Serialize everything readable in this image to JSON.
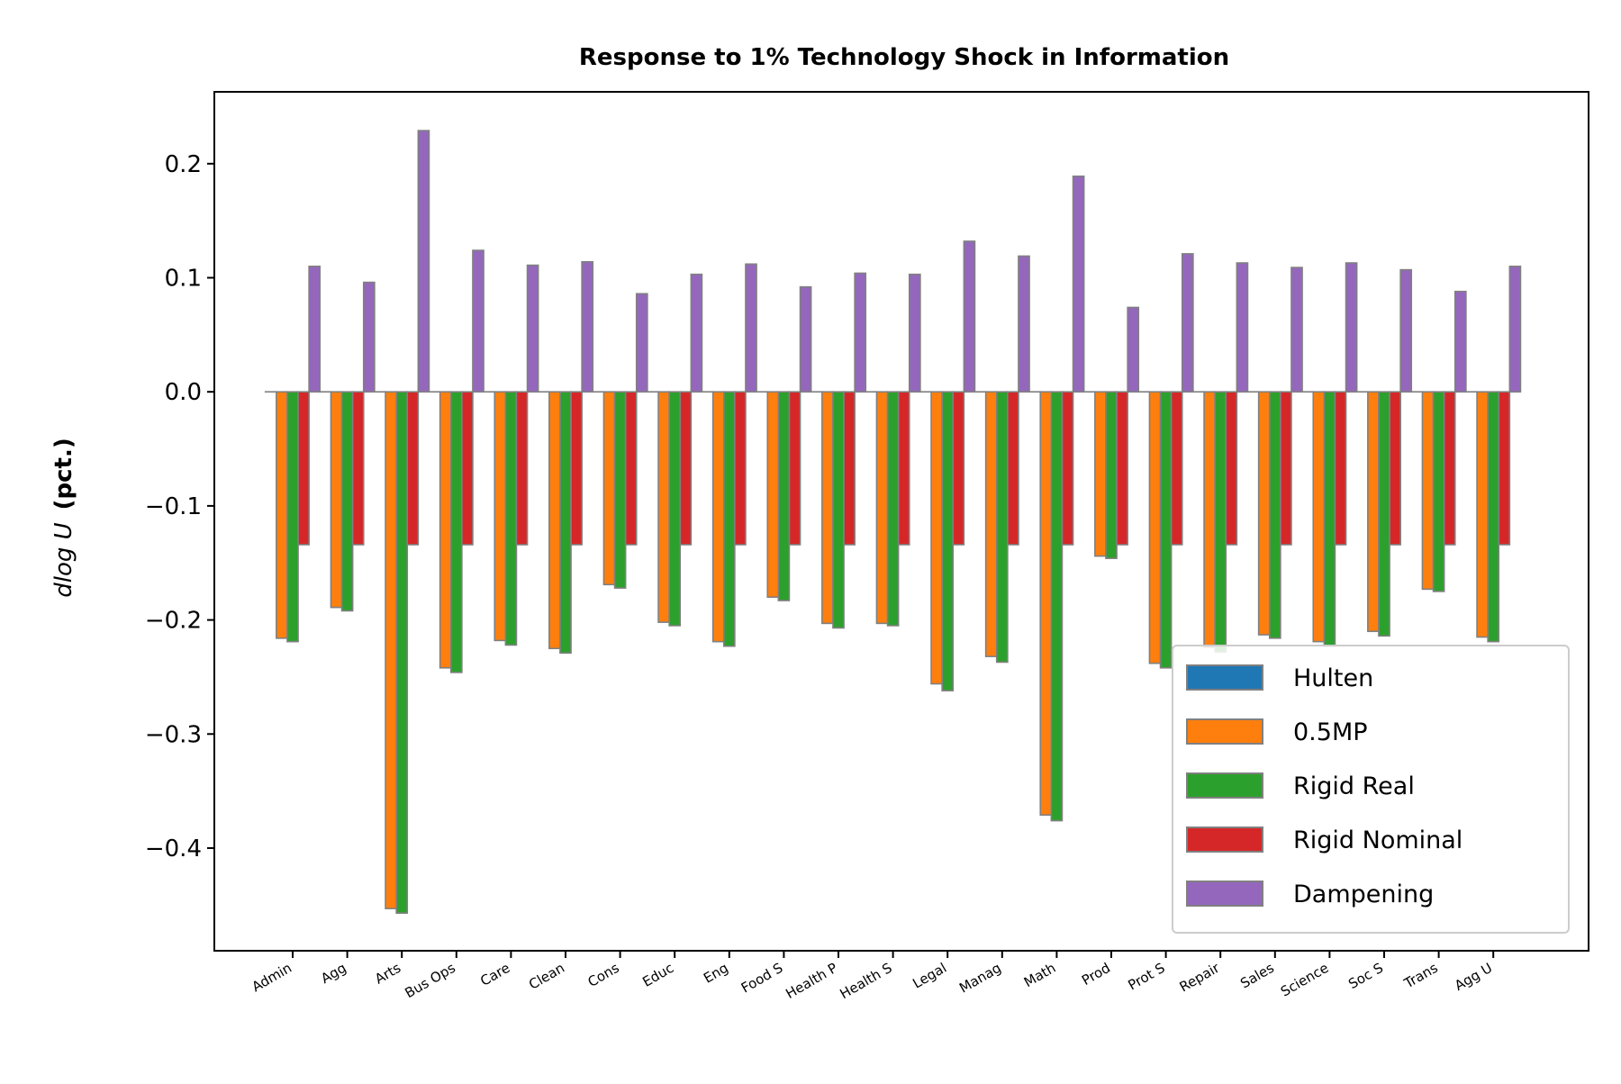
{
  "chart_data": {
    "type": "bar",
    "title": "Response to 1% Technology Shock in Information",
    "xlabel": "",
    "ylabel_math": "dlog U",
    "ylabel_unit": "(pct.)",
    "ylim": [
      -0.49,
      0.263
    ],
    "yticks": [
      0.2,
      0.1,
      0.0,
      -0.1,
      -0.2,
      -0.3,
      -0.4
    ],
    "ytick_labels": [
      "0.2",
      "0.1",
      "0.0",
      "−0.1",
      "−0.2",
      "−0.3",
      "−0.4"
    ],
    "grid": false,
    "legend_position": "lower-right",
    "categories": [
      "Admin",
      "Agg",
      "Arts",
      "Bus Ops",
      "Care",
      "Clean",
      "Cons",
      "Educ",
      "Eng",
      "Food S",
      "Health P",
      "Health S",
      "Legal",
      "Manag",
      "Math",
      "Prod",
      "Prot S",
      "Repair",
      "Sales",
      "Science",
      "Soc S",
      "Trans",
      "Agg U"
    ],
    "series": [
      {
        "name": "Hulten",
        "color": "#1f77b4",
        "values": [
          0,
          0,
          0,
          0,
          0,
          0,
          0,
          0,
          0,
          0,
          0,
          0,
          0,
          0,
          0,
          0,
          0,
          0,
          0,
          0,
          0,
          0,
          0
        ]
      },
      {
        "name": "0.5MP",
        "color": "#ff7f0e",
        "values": [
          -0.216,
          -0.189,
          -0.453,
          -0.242,
          -0.218,
          -0.225,
          -0.169,
          -0.202,
          -0.219,
          -0.18,
          -0.203,
          -0.203,
          -0.256,
          -0.232,
          -0.371,
          -0.144,
          -0.238,
          -0.224,
          -0.213,
          -0.219,
          -0.21,
          -0.173,
          -0.215
        ]
      },
      {
        "name": "Rigid Real",
        "color": "#2ca02c",
        "values": [
          -0.219,
          -0.192,
          -0.457,
          -0.246,
          -0.222,
          -0.229,
          -0.172,
          -0.205,
          -0.223,
          -0.183,
          -0.207,
          -0.205,
          -0.262,
          -0.237,
          -0.376,
          -0.146,
          -0.242,
          -0.228,
          -0.216,
          -0.223,
          -0.214,
          -0.175,
          -0.219
        ]
      },
      {
        "name": "Rigid Nominal",
        "color": "#d62728",
        "values": [
          -0.134,
          -0.134,
          -0.134,
          -0.134,
          -0.134,
          -0.134,
          -0.134,
          -0.134,
          -0.134,
          -0.134,
          -0.134,
          -0.134,
          -0.134,
          -0.134,
          -0.134,
          -0.134,
          -0.134,
          -0.134,
          -0.134,
          -0.134,
          -0.134,
          -0.134,
          -0.134
        ]
      },
      {
        "name": "Dampening",
        "color": "#9467bd",
        "values": [
          0.11,
          0.096,
          0.229,
          0.124,
          0.111,
          0.114,
          0.086,
          0.103,
          0.112,
          0.092,
          0.104,
          0.103,
          0.132,
          0.119,
          0.189,
          0.074,
          0.121,
          0.113,
          0.109,
          0.113,
          0.107,
          0.088,
          0.11
        ]
      }
    ]
  }
}
